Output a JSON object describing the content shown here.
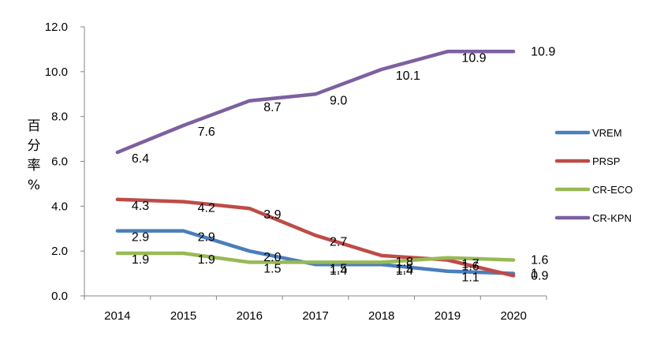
{
  "chart_data": {
    "type": "line",
    "title": "",
    "xlabel": "",
    "ylabel": "百分率%",
    "categories": [
      "2014",
      "2015",
      "2016",
      "2017",
      "2018",
      "2019",
      "2020"
    ],
    "y_ticks": [
      "0.0",
      "2.0",
      "4.0",
      "6.0",
      "8.0",
      "10.0",
      "12.0"
    ],
    "ylim": [
      0,
      12
    ],
    "grid": false,
    "legend_position": "right",
    "series": [
      {
        "name": "VREM",
        "color": "#4a7ebb",
        "values": [
          2.9,
          2.9,
          2.0,
          1.4,
          1.4,
          1.1,
          1.0
        ],
        "labels": [
          "2.9",
          "2.9",
          "2.0",
          "1.4",
          "1.4",
          "1.1",
          "1"
        ]
      },
      {
        "name": "PRSP",
        "color": "#be4b48",
        "values": [
          4.3,
          4.2,
          3.9,
          2.7,
          1.8,
          1.6,
          0.9
        ],
        "labels": [
          "4.3",
          "4.2",
          "3.9",
          "2.7",
          "1.8",
          "1.6",
          "0.9"
        ]
      },
      {
        "name": "CR-ECO",
        "color": "#98b954",
        "values": [
          1.9,
          1.9,
          1.5,
          1.5,
          1.5,
          1.7,
          1.6
        ],
        "labels": [
          "1.9",
          "1.9",
          "1.5",
          "1.5",
          "1.5",
          "1.7",
          "1.6"
        ]
      },
      {
        "name": "CR-KPN",
        "color": "#7d60a0",
        "values": [
          6.4,
          7.6,
          8.7,
          9.0,
          10.1,
          10.9,
          10.9
        ],
        "labels": [
          "6.4",
          "7.6",
          "8.7",
          "9.0",
          "10.1",
          "10.9",
          "10.9"
        ]
      }
    ]
  }
}
